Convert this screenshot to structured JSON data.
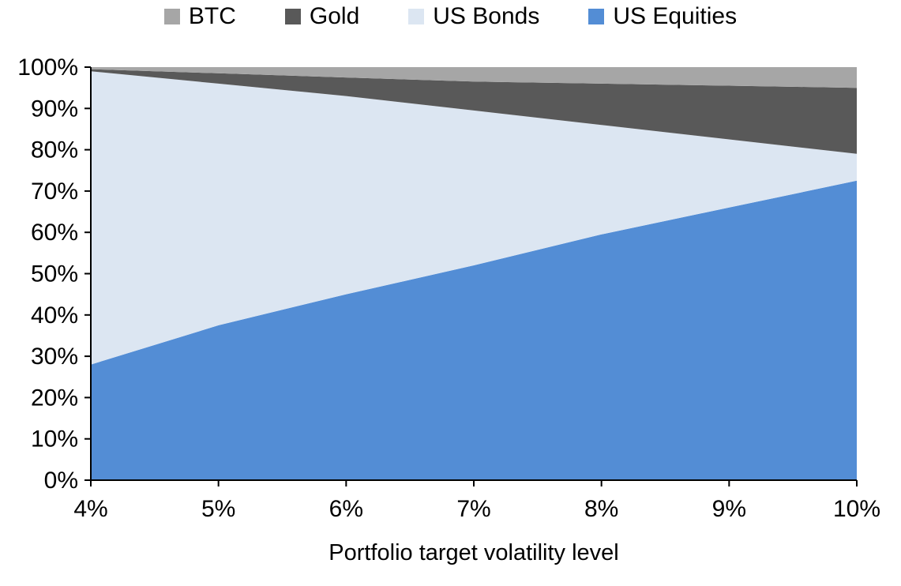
{
  "chart_data": {
    "type": "area",
    "stacked": true,
    "percent_stacked": true,
    "title": "",
    "xlabel": "Portfolio target volatility level",
    "ylabel": "",
    "x": [
      4,
      5,
      6,
      7,
      8,
      9,
      10
    ],
    "x_tick_labels": [
      "4%",
      "5%",
      "6%",
      "7%",
      "8%",
      "9%",
      "10%"
    ],
    "ylim": [
      0,
      100
    ],
    "y_tick_values": [
      0,
      10,
      20,
      30,
      40,
      50,
      60,
      70,
      80,
      90,
      100
    ],
    "y_tick_labels": [
      "0%",
      "10%",
      "20%",
      "30%",
      "40%",
      "50%",
      "60%",
      "70%",
      "80%",
      "90%",
      "100%"
    ],
    "grid": false,
    "legend_position": "top",
    "legend_order": [
      "BTC",
      "Gold",
      "US Bonds",
      "US Equities"
    ],
    "series": [
      {
        "name": "US Equities",
        "color": "#538dd5",
        "values": [
          28,
          37.5,
          45,
          52,
          59.5,
          66,
          72.5
        ]
      },
      {
        "name": "US Bonds",
        "color": "#dce6f2",
        "values": [
          71,
          58.5,
          48,
          37.5,
          26.5,
          16.5,
          6.5
        ]
      },
      {
        "name": "Gold",
        "color": "#595959",
        "values": [
          0.5,
          2.5,
          4.5,
          7,
          10,
          13,
          16
        ]
      },
      {
        "name": "BTC",
        "color": "#a6a6a6",
        "values": [
          0.5,
          1.5,
          2.5,
          3.5,
          4,
          4.5,
          5
        ]
      }
    ],
    "colors": {
      "btc": "#a6a6a6",
      "gold": "#595959",
      "us_bonds": "#dce6f2",
      "us_equities": "#538dd5",
      "axis": "#000000",
      "background": "#ffffff"
    }
  }
}
